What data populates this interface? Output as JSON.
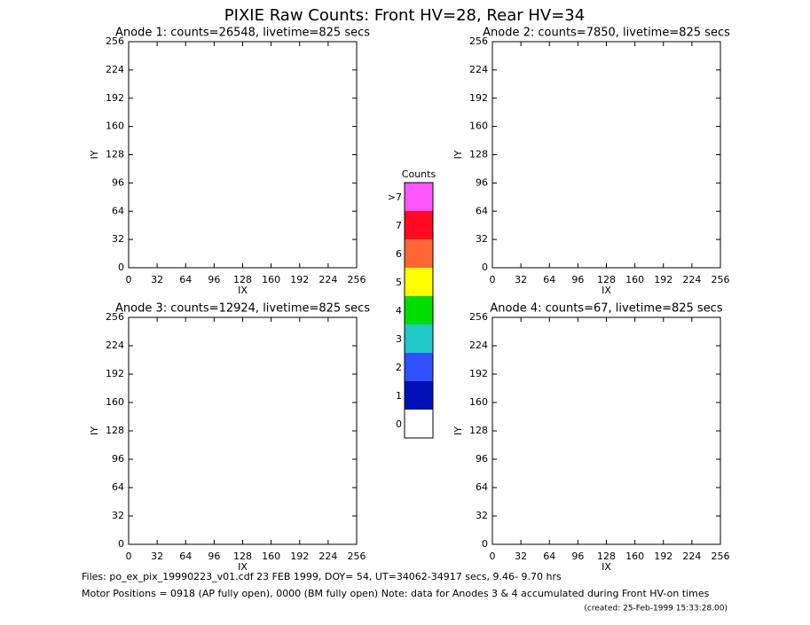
{
  "page": {
    "title": "PIXIE Raw Counts:  Front HV=28, Rear HV=34",
    "footer": [
      "Files: po_ex_pix_19990223_v01.cdf   23 FEB 1999, DOY= 54, UT=34062-34917 secs,  9.46- 9.70 hrs",
      "Motor Positions = 0918 (AP fully open), 0000 (BM fully open)   Note: data for Anodes 3 & 4 accumulated during Front HV-on times",
      "(created: 25-Feb-1999 15:33:28.00)"
    ]
  },
  "chart_data": [
    {
      "type": "heatmap",
      "title": "Anode 1: counts=26548, livetime=825 secs",
      "xlabel": "IX",
      "ylabel": "IY",
      "xlim": [
        0,
        256
      ],
      "ylim": [
        0,
        256
      ],
      "xticks": [
        0,
        32,
        64,
        96,
        128,
        160,
        192,
        224,
        256
      ],
      "yticks": [
        0,
        32,
        64,
        96,
        128,
        160,
        192,
        224,
        256
      ]
    },
    {
      "type": "heatmap",
      "title": "Anode 2: counts=7850, livetime=825 secs",
      "xlabel": "IX",
      "ylabel": "IY",
      "xlim": [
        0,
        256
      ],
      "ylim": [
        0,
        256
      ],
      "xticks": [
        0,
        32,
        64,
        96,
        128,
        160,
        192,
        224,
        256
      ],
      "yticks": [
        0,
        32,
        64,
        96,
        128,
        160,
        192,
        224,
        256
      ]
    },
    {
      "type": "heatmap",
      "title": "Anode 3: counts=12924, livetime=825 secs",
      "xlabel": "IX",
      "ylabel": "IY",
      "xlim": [
        0,
        256
      ],
      "ylim": [
        0,
        256
      ],
      "xticks": [
        0,
        32,
        64,
        96,
        128,
        160,
        192,
        224,
        256
      ],
      "yticks": [
        0,
        32,
        64,
        96,
        128,
        160,
        192,
        224,
        256
      ]
    },
    {
      "type": "heatmap",
      "title": "Anode 4: counts=67, livetime=825 secs",
      "xlabel": "IX",
      "ylabel": "IY",
      "xlim": [
        0,
        256
      ],
      "ylim": [
        0,
        256
      ],
      "xticks": [
        0,
        32,
        64,
        96,
        128,
        160,
        192,
        224,
        256
      ],
      "yticks": [
        0,
        32,
        64,
        96,
        128,
        160,
        192,
        224,
        256
      ]
    },
    {
      "type": "colorbar",
      "title": "Counts",
      "categories": [
        "0",
        "1",
        "2",
        "3",
        "4",
        "5",
        "6",
        "7",
        ">7"
      ],
      "colors": [
        "#ffffff",
        "#0010b8",
        "#3050ff",
        "#20c8c8",
        "#00dd00",
        "#ffff00",
        "#ff6633",
        "#ff0a20",
        "#ff55ff"
      ]
    }
  ]
}
